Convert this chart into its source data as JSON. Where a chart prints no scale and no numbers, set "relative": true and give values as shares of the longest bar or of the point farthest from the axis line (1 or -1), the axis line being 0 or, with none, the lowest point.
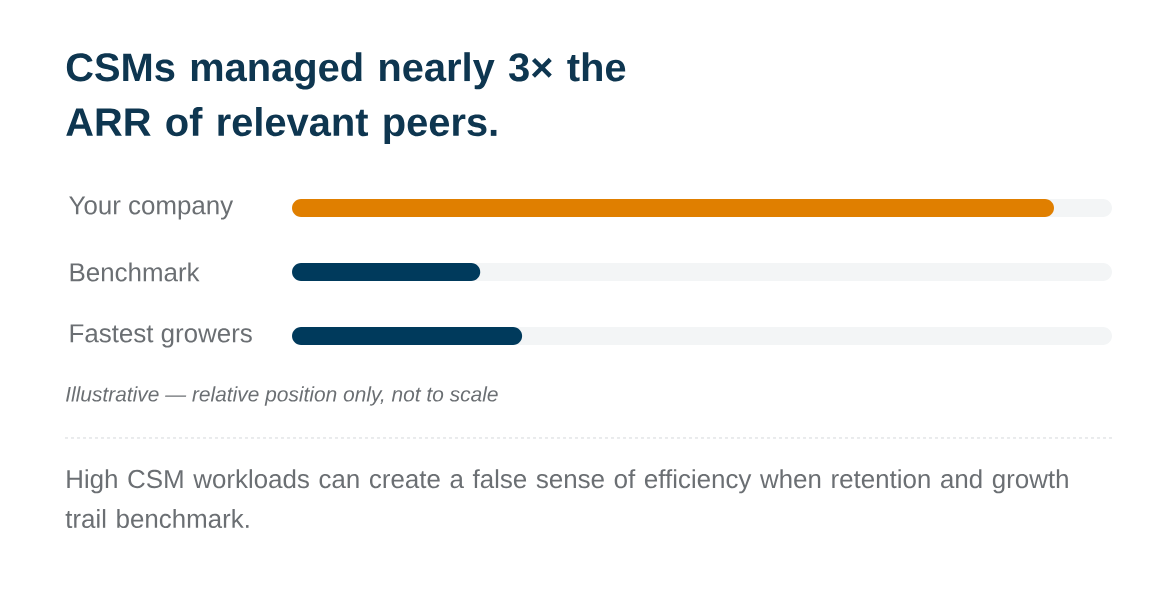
{
  "chart_data": {
    "type": "bar",
    "orientation": "horizontal",
    "relative": true,
    "title": "CSMs managed nearly 3× the ARR of relevant peers.",
    "categories": [
      "Your company",
      "Benchmark",
      "Fastest growers"
    ],
    "values": [
      1,
      0.247,
      0.302
    ],
    "colors": [
      "#e07f00",
      "#003a5c",
      "#003a5c"
    ],
    "annotations": [
      "Illustrative — relative position only, not to scale",
      "High CSM workloads can create a false sense of efficiency when retention and growth trail benchmark."
    ]
  }
}
